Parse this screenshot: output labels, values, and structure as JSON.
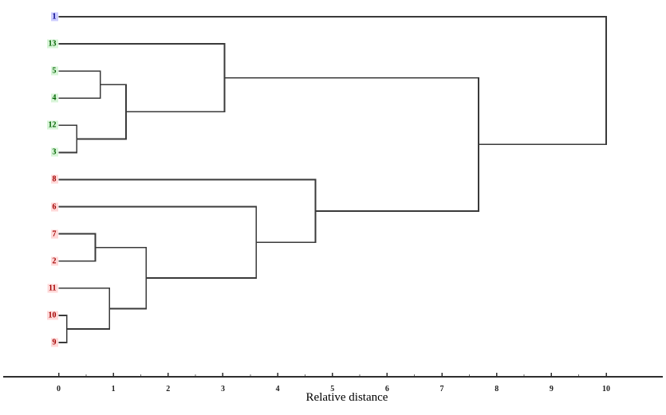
{
  "chart_data": {
    "type": "dendrogram",
    "orientation": "horizontal_leaves_left",
    "xlabel": "Relative distance",
    "axis": {
      "ticks": [
        0,
        1,
        2,
        3,
        4,
        5,
        6,
        7,
        8,
        9,
        10
      ],
      "minor_tick_step": 0.5,
      "xlim": [
        -1,
        11
      ]
    },
    "leaves": [
      {
        "label": "1",
        "group": "blue"
      },
      {
        "label": "13",
        "group": "green"
      },
      {
        "label": "5",
        "group": "green"
      },
      {
        "label": "4",
        "group": "green"
      },
      {
        "label": "12",
        "group": "green"
      },
      {
        "label": "3",
        "group": "green"
      },
      {
        "label": "8",
        "group": "red"
      },
      {
        "label": "6",
        "group": "red"
      },
      {
        "label": "7",
        "group": "red"
      },
      {
        "label": "2",
        "group": "red"
      },
      {
        "label": "11",
        "group": "red"
      },
      {
        "label": "10",
        "group": "red"
      },
      {
        "label": "9",
        "group": "red"
      }
    ],
    "merges": [
      {
        "id": "m1",
        "children": [
          "10",
          "9"
        ],
        "distance": 0.15
      },
      {
        "id": "m2",
        "children": [
          "12",
          "3"
        ],
        "distance": 0.33
      },
      {
        "id": "m3",
        "children": [
          "7",
          "2"
        ],
        "distance": 0.67
      },
      {
        "id": "m4",
        "children": [
          "5",
          "4"
        ],
        "distance": 0.76
      },
      {
        "id": "m5",
        "children": [
          "11",
          "m1"
        ],
        "distance": 0.93
      },
      {
        "id": "m6",
        "children": [
          "m4",
          "m2"
        ],
        "distance": 1.23
      },
      {
        "id": "m7",
        "children": [
          "m3",
          "m5"
        ],
        "distance": 1.6
      },
      {
        "id": "m8",
        "children": [
          "13",
          "m6"
        ],
        "distance": 3.03
      },
      {
        "id": "m9",
        "children": [
          "6",
          "m7"
        ],
        "distance": 3.61
      },
      {
        "id": "m10",
        "children": [
          "8",
          "m9"
        ],
        "distance": 4.69
      },
      {
        "id": "m11",
        "children": [
          "m8",
          "m10"
        ],
        "distance": 7.67
      },
      {
        "id": "m12",
        "children": [
          "1",
          "m11"
        ],
        "distance": 10.0
      }
    ],
    "colors": {
      "line": "#3a3a3a",
      "axis_line": "#2e2e2e",
      "groups": {
        "blue": {
          "text": "#00008b",
          "bg": "#ccccff"
        },
        "green": {
          "text": "#006400",
          "bg": "#d8f5d8"
        },
        "red": {
          "text": "#a30000",
          "bg": "#ffd9d9"
        }
      }
    }
  }
}
